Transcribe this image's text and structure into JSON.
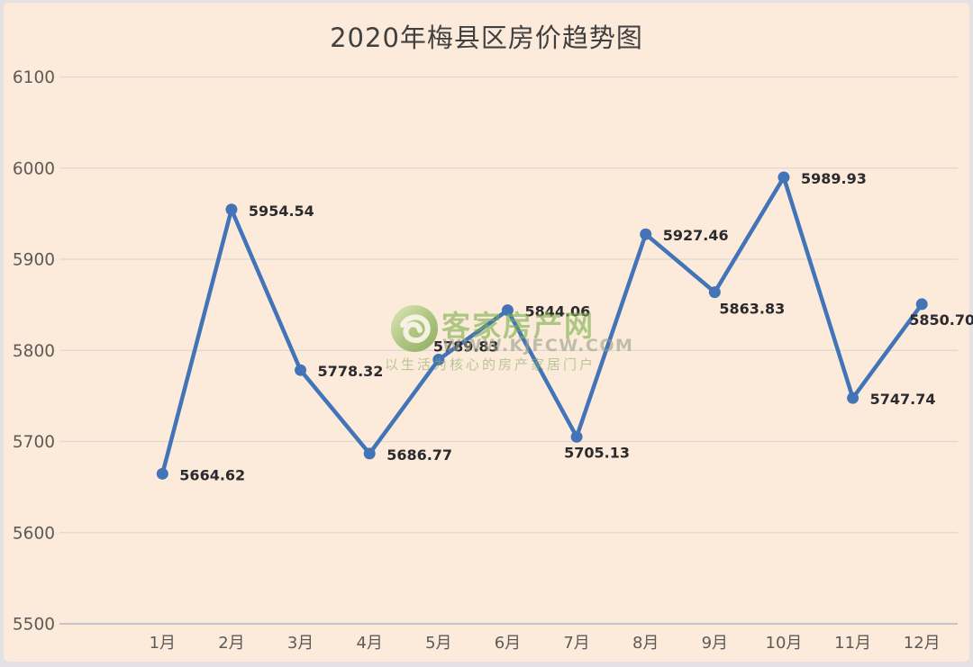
{
  "page": {
    "frame_color": "#e3e1e4",
    "card_background": "#fcebdb"
  },
  "chart_data": {
    "type": "line",
    "title": "2020年梅县区房价趋势图",
    "categories": [
      "1月",
      "2月",
      "3月",
      "4月",
      "5月",
      "6月",
      "7月",
      "8月",
      "9月",
      "10月",
      "11月",
      "12月"
    ],
    "values": [
      5664.62,
      5954.54,
      5778.32,
      5686.77,
      5789.83,
      5844.06,
      5705.13,
      5927.46,
      5863.83,
      5989.93,
      5747.74,
      5850.7
    ],
    "data_labels": [
      "5664.62",
      "5954.54",
      "5778.32",
      "5686.77",
      "5789.83",
      "5844.06",
      "5705.13",
      "5927.46",
      "5863.83",
      "5989.93",
      "5747.74",
      "5850.70"
    ],
    "label_positions": [
      "right",
      "right",
      "right",
      "right",
      "above",
      "right",
      "below",
      "right",
      "below-right",
      "right",
      "right",
      "below"
    ],
    "xlabel": "",
    "ylabel": "",
    "ylim": [
      5500,
      6100
    ],
    "yticks": [
      5500,
      5600,
      5700,
      5800,
      5900,
      6000,
      6100
    ],
    "ytick_labels": [
      "5500",
      "5600",
      "5700",
      "5800",
      "5900",
      "6000",
      "6100"
    ],
    "grid": "horizontal",
    "legend": "none",
    "line_color": "#4274b7",
    "marker": "circle",
    "marker_color": "#4274b7",
    "data_label_color": "#2b2a2e",
    "axis_text_color": "#5d5a57",
    "gridline_color": "#dcd8d4",
    "axis_line_color": "#c4c1c7",
    "title_color": "#404040"
  },
  "watermark": {
    "site_name": "客家房产网",
    "site_url": "WWW.KJFCW.COM",
    "slogan": "以生活为核心的房产家居门户",
    "logo_icon": "green-swirl-logo",
    "logo_color": "#6f9f43"
  }
}
